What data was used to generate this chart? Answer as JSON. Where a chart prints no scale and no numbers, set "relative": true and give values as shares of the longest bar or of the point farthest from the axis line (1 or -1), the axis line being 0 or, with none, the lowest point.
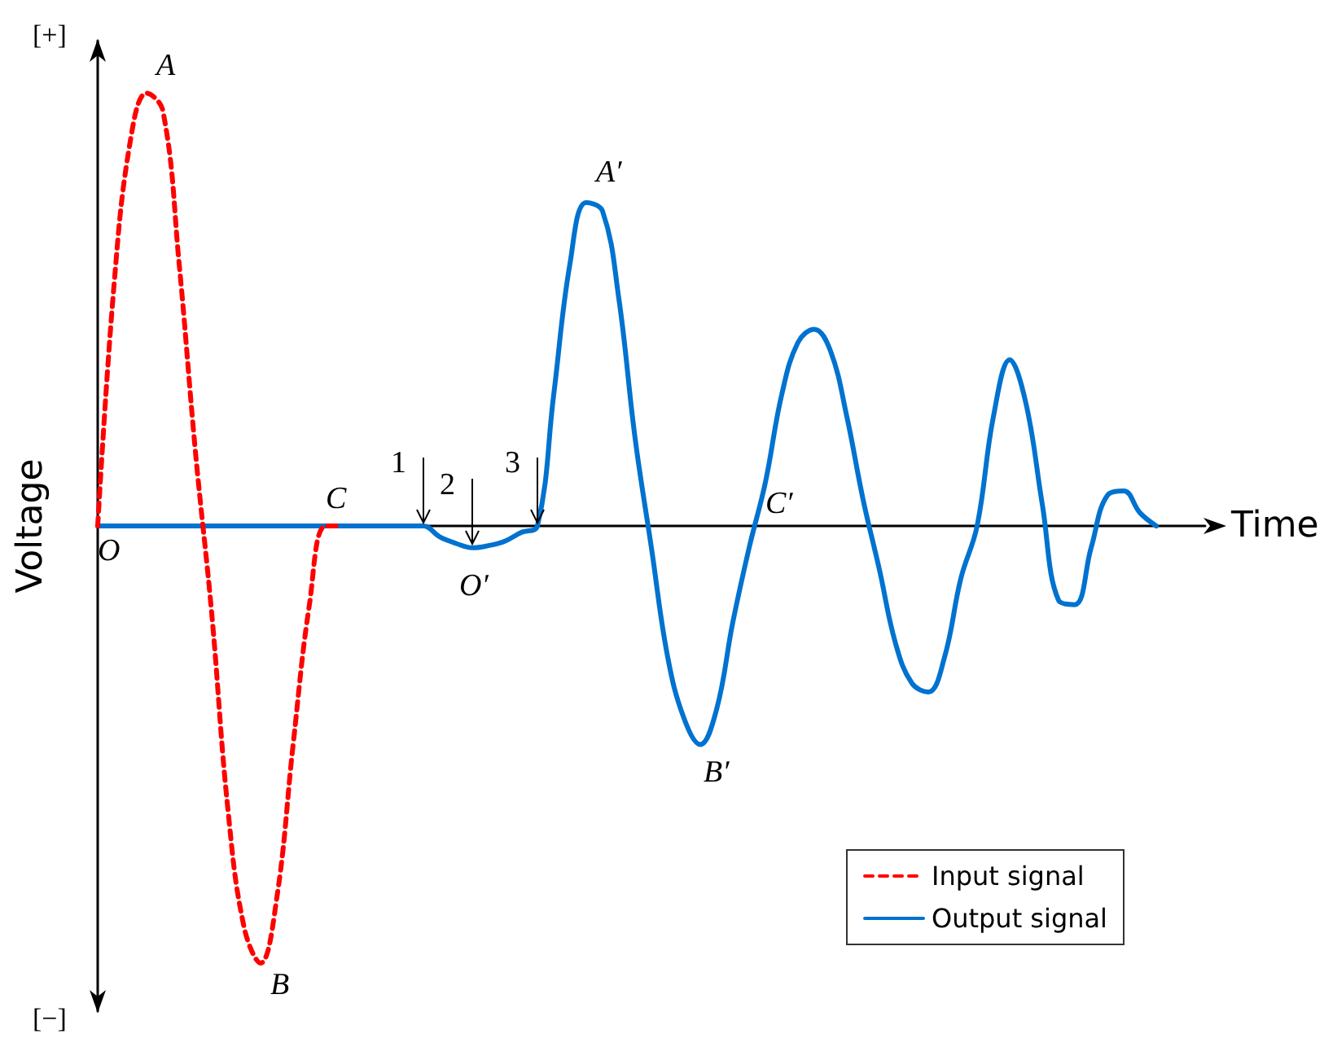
{
  "chart_data": {
    "type": "line",
    "relative": true,
    "xlabel": "Time",
    "ylabel": "Voltage",
    "categories": [
      null,
      null,
      null,
      null,
      null,
      null,
      null,
      null,
      null,
      null,
      null,
      null,
      null,
      null,
      null,
      null,
      null,
      null,
      null,
      null,
      null,
      null,
      null,
      null,
      null,
      null,
      null,
      null,
      null,
      null,
      null,
      null,
      null,
      null,
      null,
      null,
      null,
      null,
      null,
      null,
      null,
      null,
      null,
      null,
      null,
      null,
      null,
      null,
      null,
      null,
      null,
      null,
      null,
      null,
      null,
      null,
      null,
      null,
      null,
      null,
      null,
      null,
      null,
      null,
      null,
      null,
      null,
      null,
      null
    ],
    "grid": false,
    "legend": "bottom right",
    "marker": "none",
    "series": [
      {
        "name": "Input signal",
        "color": "#ff0000",
        "line_style": "dashed",
        "values": [
          0,
          0.55,
          0.88,
          0.99,
          0.95,
          0.6,
          0.17,
          -0.2,
          -0.65,
          -0.92,
          -1.0,
          -0.85,
          -0.5,
          -0.18,
          0,
          0,
          null,
          null,
          null,
          null,
          null,
          null,
          null,
          null,
          null,
          null,
          null,
          null,
          null,
          null,
          null,
          null,
          null,
          null,
          null,
          null,
          null,
          null,
          null,
          null,
          null,
          null,
          null,
          null,
          null,
          null,
          null,
          null,
          null,
          null,
          null,
          null,
          null,
          null,
          null,
          null,
          null,
          null,
          null,
          null,
          null,
          null,
          null,
          null,
          null,
          null,
          null,
          null,
          null
        ]
      },
      {
        "name": "Output signal",
        "color": "#0072cf",
        "line_style": "solid",
        "values": [
          0,
          0,
          0,
          0,
          0,
          0,
          0,
          0,
          0,
          0,
          0,
          0,
          0,
          0,
          0,
          0,
          0,
          0,
          0,
          0,
          0,
          -0.025,
          -0.04,
          -0.05,
          -0.045,
          -0.035,
          -0.015,
          0,
          0.3,
          0.6,
          0.74,
          0.72,
          0.52,
          0.2,
          -0.05,
          -0.3,
          -0.44,
          -0.5,
          -0.42,
          -0.22,
          -0.05,
          0.1,
          0.3,
          0.42,
          0.45,
          0.4,
          0.25,
          0.06,
          -0.1,
          -0.27,
          -0.36,
          -0.38,
          -0.3,
          -0.12,
          0,
          0.25,
          0.38,
          0.28,
          0.05,
          -0.17,
          -0.18,
          -0.05,
          0.07,
          0.08,
          0.03,
          0,
          null,
          null,
          null
        ]
      }
    ],
    "annotations": [
      "[+]",
      "[−]",
      "A",
      "B",
      "C",
      "O",
      "A′",
      "B′",
      "C′",
      "O′",
      "1",
      "2",
      "3"
    ]
  }
}
